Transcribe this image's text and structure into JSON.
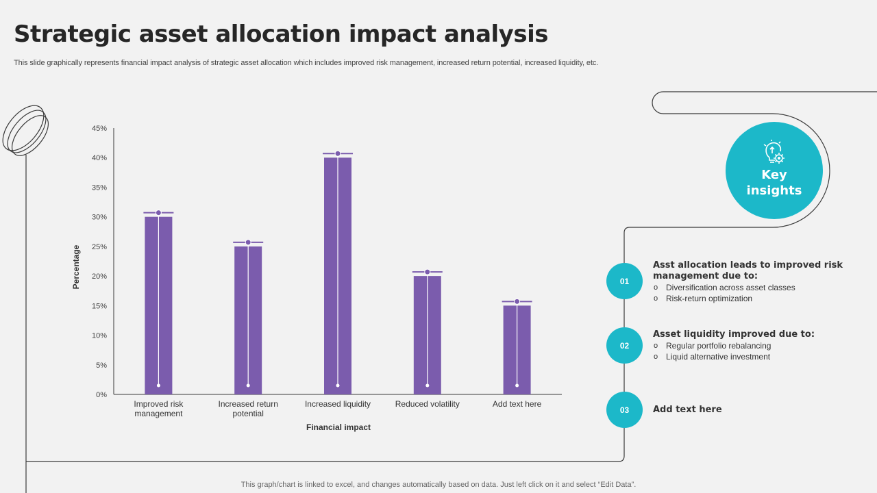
{
  "page": {
    "title": "Strategic asset allocation impact analysis",
    "subtitle": "This slide graphically represents financial impact analysis of strategic asset allocation which includes improved risk management, increased return potential, increased liquidity, etc.",
    "footer": "This graph/chart is linked to excel,  and changes automatically based on data. Just left click on it and select “Edit Data”."
  },
  "colors": {
    "bar": "#7b5cad",
    "accent": "#1cb8c9",
    "line": "#3a3a3a"
  },
  "chart_data": {
    "type": "bar",
    "categories": [
      "Improved risk\nmanagement",
      "Increased return\npotential",
      "Increased liquidity",
      "Reduced volatility",
      "Add text here"
    ],
    "values": [
      30,
      25,
      40,
      20,
      15
    ],
    "xlabel": "Financial impact",
    "ylabel": "Percentage",
    "ylim": [
      0,
      45
    ],
    "ytick_step": 5,
    "ytick_labels": [
      "0%",
      "5%",
      "10%",
      "15%",
      "20%",
      "25%",
      "30%",
      "35%",
      "40%",
      "45%"
    ],
    "grid": false,
    "legend": "none"
  },
  "key_insights": {
    "label": "Key\ninsights",
    "icon": "lightbulb-gear-icon",
    "items": [
      {
        "number": "01",
        "heading": "Asst allocation leads to improved risk management due to:",
        "bullets": [
          "Diversification  across asset classes",
          "Risk-return  optimization"
        ]
      },
      {
        "number": "02",
        "heading": "Asset liquidity improved due to:",
        "bullets": [
          "Regular  portfolio  rebalancing",
          "Liquid  alternative  investment"
        ]
      },
      {
        "number": "03",
        "heading": "Add text here",
        "bullets": []
      }
    ]
  }
}
